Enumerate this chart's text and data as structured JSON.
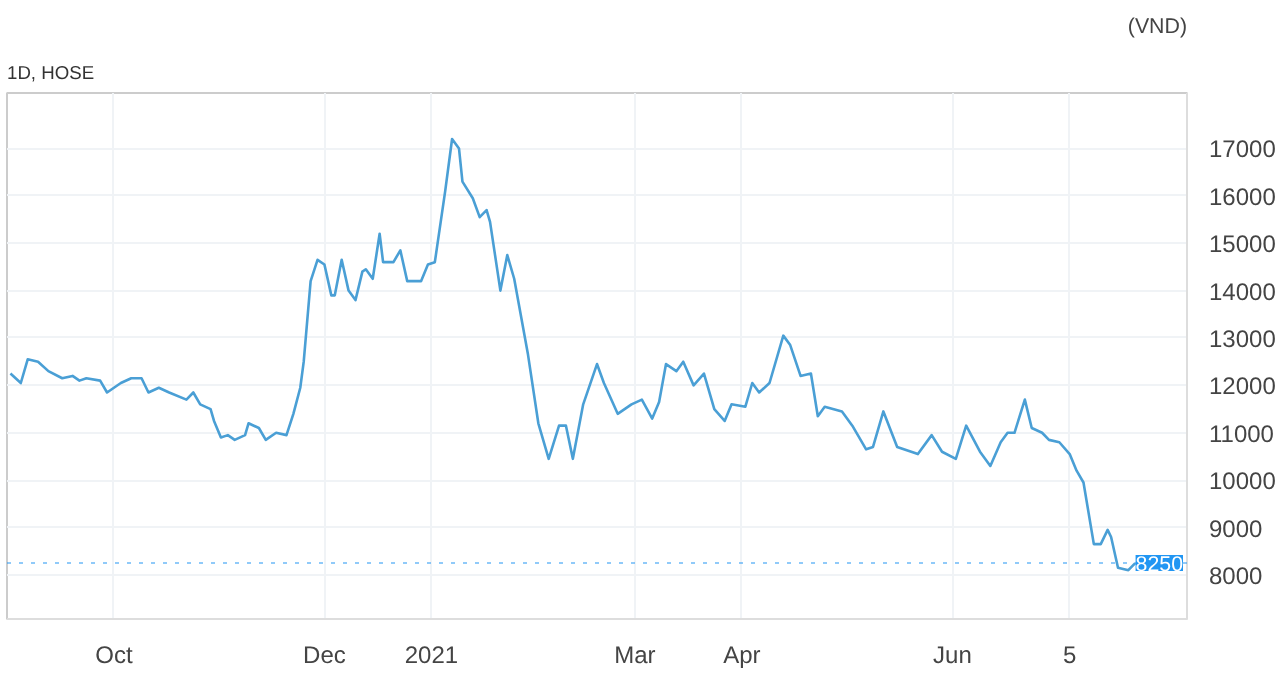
{
  "chart_data": {
    "type": "line",
    "title": "1D, HOSE",
    "ylabel": "(VND)",
    "x": [
      "2020-09-01",
      "2020-09-04",
      "2020-09-06",
      "2020-09-09",
      "2020-09-12",
      "2020-09-16",
      "2020-09-19",
      "2020-09-21",
      "2020-09-23",
      "2020-09-27",
      "2020-09-29",
      "2020-10-03",
      "2020-10-06",
      "2020-10-09",
      "2020-10-11",
      "2020-10-14",
      "2020-10-17",
      "2020-10-22",
      "2020-10-24",
      "2020-10-26",
      "2020-10-29",
      "2020-10-30",
      "2020-11-01",
      "2020-11-03",
      "2020-11-05",
      "2020-11-08",
      "2020-11-09",
      "2020-11-12",
      "2020-11-14",
      "2020-11-17",
      "2020-11-20",
      "2020-11-22",
      "2020-11-24",
      "2020-11-25",
      "2020-11-27",
      "2020-11-29",
      "2020-12-01",
      "2020-12-03",
      "2020-12-04",
      "2020-12-06",
      "2020-12-08",
      "2020-12-10",
      "2020-12-12",
      "2020-12-13",
      "2020-12-15",
      "2020-12-17",
      "2020-12-18",
      "2020-12-21",
      "2020-12-23",
      "2020-12-25",
      "2020-12-29",
      "2020-12-31",
      "2021-01-02",
      "2021-01-05",
      "2021-01-07",
      "2021-01-09",
      "2021-01-10",
      "2021-01-13",
      "2021-01-15",
      "2021-01-17",
      "2021-01-18",
      "2021-01-21",
      "2021-01-23",
      "2021-01-25",
      "2021-01-29",
      "2021-02-01",
      "2021-02-04",
      "2021-02-07",
      "2021-02-09",
      "2021-02-11",
      "2021-02-14",
      "2021-02-18",
      "2021-02-20",
      "2021-02-24",
      "2021-02-28",
      "2021-03-03",
      "2021-03-06",
      "2021-03-08",
      "2021-03-10",
      "2021-03-13",
      "2021-03-15",
      "2021-03-18",
      "2021-03-21",
      "2021-03-24",
      "2021-03-27",
      "2021-03-29",
      "2021-04-02",
      "2021-04-04",
      "2021-04-06",
      "2021-04-09",
      "2021-04-13",
      "2021-04-15",
      "2021-04-18",
      "2021-04-21",
      "2021-04-23",
      "2021-04-25",
      "2021-04-30",
      "2021-05-03",
      "2021-05-07",
      "2021-05-09",
      "2021-05-12",
      "2021-05-16",
      "2021-05-22",
      "2021-05-26",
      "2021-05-29",
      "2021-06-02",
      "2021-06-05",
      "2021-06-09",
      "2021-06-12",
      "2021-06-15",
      "2021-06-17",
      "2021-06-19",
      "2021-06-22",
      "2021-06-24",
      "2021-06-27",
      "2021-06-29",
      "2021-07-02",
      "2021-07-05",
      "2021-07-07",
      "2021-07-09",
      "2021-07-12",
      "2021-07-14",
      "2021-07-16",
      "2021-07-17",
      "2021-07-19",
      "2021-07-22",
      "2021-07-24"
    ],
    "series": [
      {
        "color": "#4a9fd5",
        "values": [
          12250,
          12050,
          12550,
          12500,
          12300,
          12150,
          12200,
          12100,
          12150,
          12100,
          11850,
          12050,
          12150,
          12150,
          11850,
          11950,
          11850,
          11700,
          11850,
          11600,
          11500,
          11250,
          10900,
          10950,
          10850,
          10950,
          11200,
          11100,
          10850,
          11000,
          10950,
          11400,
          11950,
          12500,
          14200,
          14650,
          14550,
          13900,
          13900,
          14650,
          14000,
          13800,
          14400,
          14450,
          14250,
          15200,
          14600,
          14600,
          14850,
          14200,
          14200,
          14550,
          14600,
          16100,
          17200,
          17000,
          16300,
          15950,
          15550,
          15700,
          15450,
          14000,
          14750,
          14250,
          12650,
          11200,
          10450,
          11150,
          11150,
          10450,
          11600,
          12450,
          12050,
          11400,
          11600,
          11700,
          11300,
          11650,
          12450,
          12300,
          12500,
          12000,
          12250,
          11500,
          11250,
          11600,
          11550,
          12050,
          11850,
          12050,
          13050,
          12850,
          12200,
          12250,
          11350,
          11550,
          11450,
          11150,
          10650,
          10700,
          11450,
          10700,
          10550,
          10950,
          10600,
          10450,
          11150,
          10600,
          10300,
          10800,
          11000,
          11000,
          11700,
          11100,
          11000,
          10850,
          10800,
          10550,
          10200,
          9950,
          8650,
          8650,
          8950,
          8800,
          8150,
          8100,
          8250
        ]
      }
    ],
    "xlim": [
      "2020-08-31",
      "2021-08-08"
    ],
    "xticks": [
      {
        "value": "2020-10-01",
        "label": "Oct"
      },
      {
        "value": "2020-12-01",
        "label": "Dec"
      },
      {
        "value": "2021-01-01",
        "label": "2021"
      },
      {
        "value": "2021-03-01",
        "label": "Mar"
      },
      {
        "value": "2021-04-01",
        "label": "Apr"
      },
      {
        "value": "2021-06-01",
        "label": "Jun"
      },
      {
        "value": "2021-07-05",
        "label": "5"
      }
    ],
    "ylim": [
      7070,
      18170
    ],
    "yticks": [
      8000,
      9000,
      10000,
      11000,
      12000,
      13000,
      14000,
      15000,
      16000,
      17000
    ],
    "ref_lines": [
      {
        "axis": "y",
        "value": 8250,
        "label": "8250",
        "color": "#2196f3",
        "line_style": "dotted"
      }
    ],
    "grid": true,
    "marker": "none",
    "line_style": "solid"
  }
}
